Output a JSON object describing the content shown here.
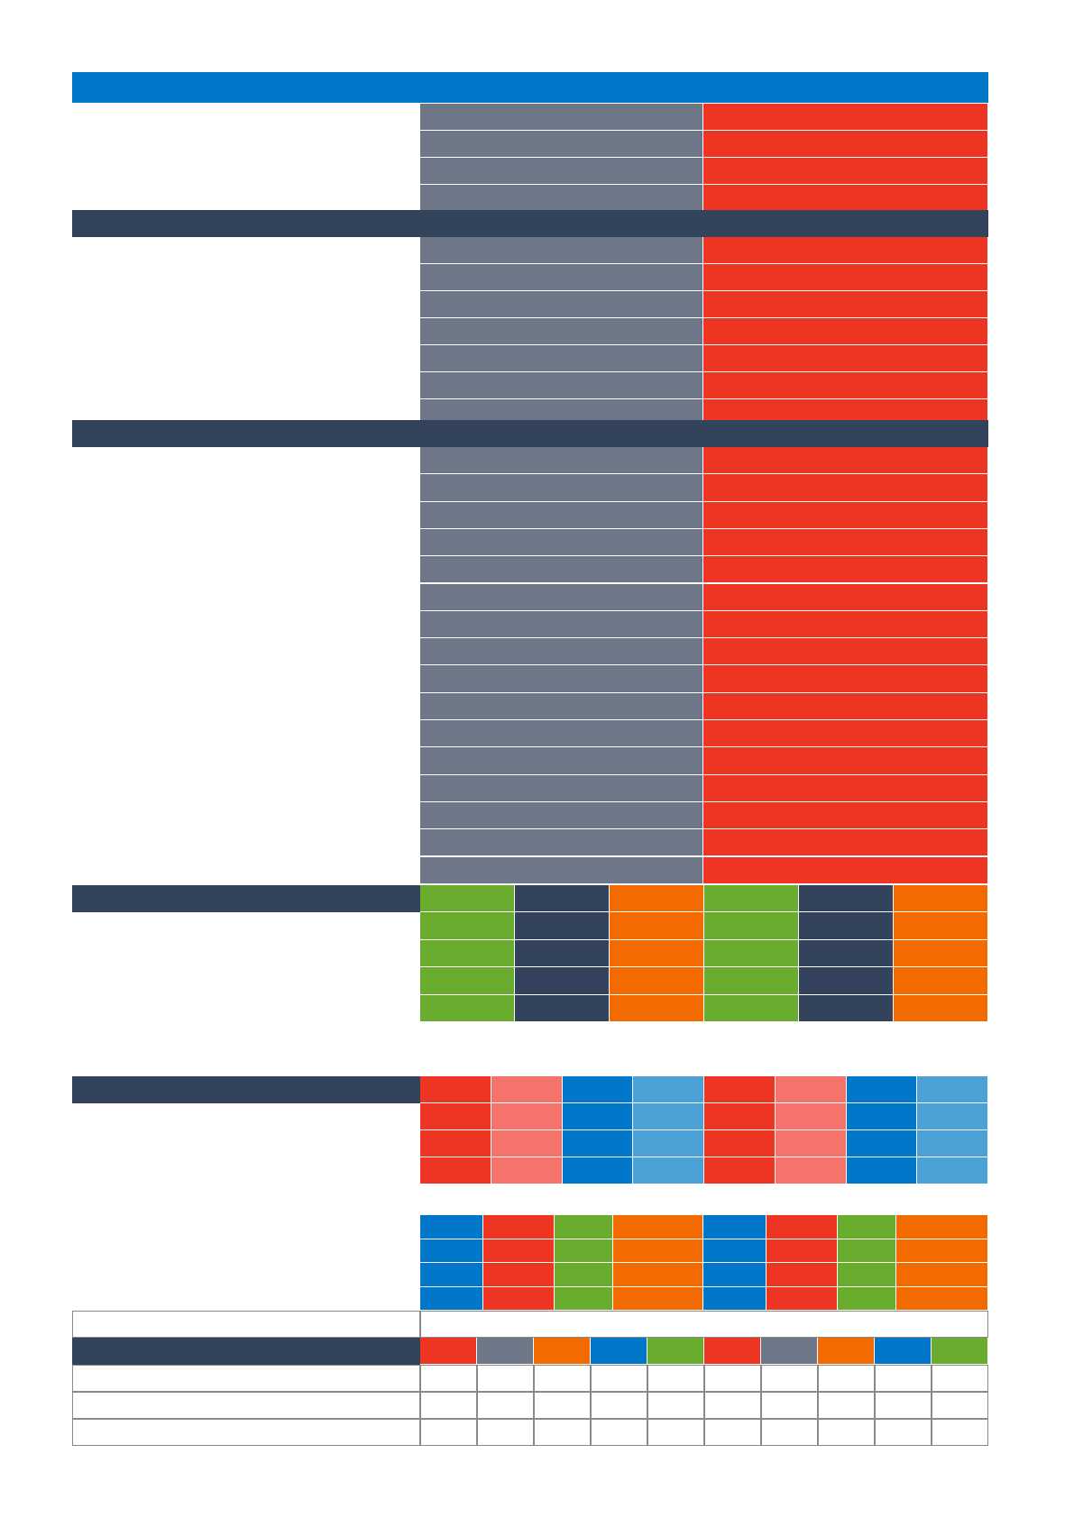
{
  "colors": {
    "header_blue": "#0077c8",
    "section_navy": "#33435c",
    "slate_gray": "#6d7788",
    "red": "#ee3524",
    "green": "#6aac2e",
    "orange": "#f26a00",
    "salmon": "#f4736a",
    "sky_blue": "#4ca1d7",
    "border_gray": "#8a8a8a"
  },
  "document": {
    "header_bar": "",
    "section_headers": [
      "",
      "",
      ""
    ],
    "text_content": []
  }
}
